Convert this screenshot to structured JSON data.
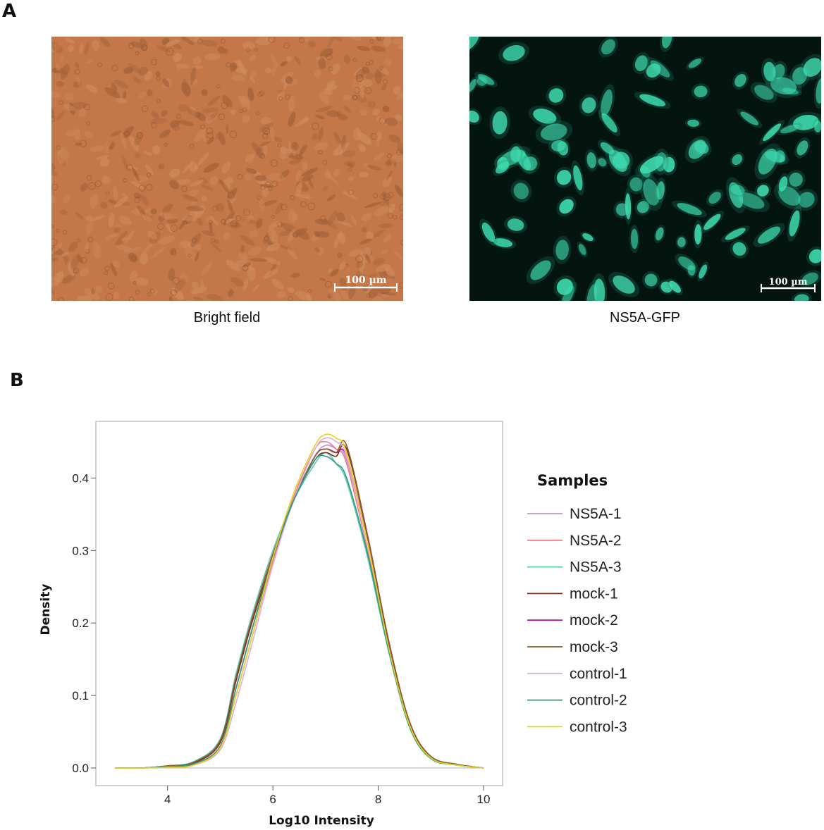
{
  "panel_a": {
    "letter": "A",
    "images": [
      {
        "caption": "Bright field",
        "scale_bar": "100 µm",
        "colors": {
          "bg": "#c4784a",
          "cell": "#d99a6e",
          "edge": "#8a4e2c"
        }
      },
      {
        "caption": "NS5A-GFP",
        "scale_bar": "100 µm",
        "colors": {
          "bg": "#04140f",
          "cell": "#3fdcb0",
          "glow": "#1e8c70"
        }
      }
    ]
  },
  "panel_b": {
    "letter": "B"
  },
  "chart_data": {
    "type": "line",
    "title": "",
    "xlabel": "Log10 Intensity",
    "ylabel": "Density",
    "xlim": [
      3,
      10
    ],
    "ylim": [
      0,
      0.48
    ],
    "xticks": [
      4,
      6,
      8,
      10
    ],
    "yticks": [
      0.0,
      0.1,
      0.2,
      0.3,
      0.4
    ],
    "ytick_labels": [
      "0.0",
      "0.1",
      "0.2",
      "0.3",
      "0.4"
    ],
    "grid": false,
    "legend_title": "Samples",
    "legend_position": "right",
    "x": [
      3.0,
      3.5,
      4.0,
      4.5,
      5.0,
      5.3,
      5.6,
      6.0,
      6.4,
      6.8,
      7.0,
      7.2,
      7.4,
      7.8,
      8.2,
      8.6,
      9.0,
      9.5,
      10.0
    ],
    "series": [
      {
        "name": "NS5A-1",
        "color": "#c58fd0",
        "values": [
          0.0,
          0.0,
          0.002,
          0.006,
          0.03,
          0.11,
          0.19,
          0.29,
          0.37,
          0.43,
          0.445,
          0.44,
          0.425,
          0.31,
          0.17,
          0.06,
          0.015,
          0.005,
          0.0
        ]
      },
      {
        "name": "NS5A-2",
        "color": "#f07a8a",
        "values": [
          0.0,
          0.0,
          0.002,
          0.005,
          0.03,
          0.1,
          0.18,
          0.285,
          0.375,
          0.44,
          0.45,
          0.44,
          0.42,
          0.3,
          0.165,
          0.058,
          0.014,
          0.004,
          0.0
        ]
      },
      {
        "name": "NS5A-3",
        "color": "#5ccab0",
        "values": [
          0.0,
          0.0,
          0.003,
          0.009,
          0.04,
          0.13,
          0.21,
          0.3,
          0.37,
          0.42,
          0.435,
          0.42,
          0.395,
          0.29,
          0.16,
          0.055,
          0.013,
          0.004,
          0.0
        ]
      },
      {
        "name": "mock-1",
        "color": "#7a2a1a",
        "values": [
          0.0,
          0.0,
          0.002,
          0.007,
          0.035,
          0.12,
          0.2,
          0.29,
          0.37,
          0.425,
          0.435,
          0.43,
          0.44,
          0.32,
          0.175,
          0.062,
          0.016,
          0.005,
          0.0
        ]
      },
      {
        "name": "mock-2",
        "color": "#a0209a",
        "values": [
          0.0,
          0.0,
          0.002,
          0.006,
          0.03,
          0.11,
          0.19,
          0.29,
          0.37,
          0.43,
          0.44,
          0.435,
          0.43,
          0.315,
          0.17,
          0.06,
          0.015,
          0.005,
          0.0
        ]
      },
      {
        "name": "mock-3",
        "color": "#8c5a2c",
        "values": [
          0.0,
          0.0,
          0.003,
          0.008,
          0.038,
          0.125,
          0.205,
          0.295,
          0.37,
          0.43,
          0.44,
          0.435,
          0.445,
          0.32,
          0.175,
          0.063,
          0.016,
          0.005,
          0.0
        ]
      },
      {
        "name": "control-1",
        "color": "#d8b0e0",
        "values": [
          0.0,
          0.0,
          0.001,
          0.004,
          0.025,
          0.09,
          0.17,
          0.28,
          0.37,
          0.44,
          0.455,
          0.45,
          0.43,
          0.31,
          0.165,
          0.058,
          0.014,
          0.004,
          0.0
        ]
      },
      {
        "name": "control-2",
        "color": "#2a9a80",
        "values": [
          0.0,
          0.0,
          0.002,
          0.006,
          0.03,
          0.11,
          0.19,
          0.29,
          0.37,
          0.425,
          0.43,
          0.42,
          0.4,
          0.295,
          0.162,
          0.056,
          0.013,
          0.004,
          0.0
        ]
      },
      {
        "name": "control-3",
        "color": "#e6d21a",
        "values": [
          0.0,
          0.0,
          0.001,
          0.004,
          0.028,
          0.1,
          0.18,
          0.29,
          0.38,
          0.445,
          0.46,
          0.455,
          0.435,
          0.31,
          0.166,
          0.058,
          0.014,
          0.004,
          0.0
        ]
      }
    ]
  }
}
